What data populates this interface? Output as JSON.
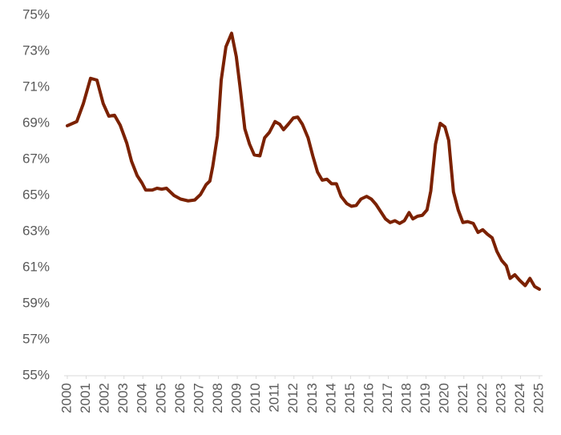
{
  "chart_data": {
    "type": "line",
    "x": [
      2000,
      2000.5,
      2000.85,
      2001.23,
      2001.57,
      2001.9,
      2002.2,
      2002.5,
      2002.8,
      2003.15,
      2003.4,
      2003.7,
      2003.95,
      2004.15,
      2004.5,
      2004.75,
      2005.0,
      2005.25,
      2005.65,
      2006.0,
      2006.4,
      2006.75,
      2007.05,
      2007.35,
      2007.55,
      2007.7,
      2007.95,
      2008.15,
      2008.4,
      2008.7,
      2008.95,
      2009.15,
      2009.4,
      2009.65,
      2009.9,
      2010.2,
      2010.45,
      2010.7,
      2011.0,
      2011.25,
      2011.45,
      2011.7,
      2011.97,
      2012.2,
      2012.45,
      2012.75,
      2013.0,
      2013.25,
      2013.5,
      2013.75,
      2014.0,
      2014.25,
      2014.5,
      2014.8,
      2015.05,
      2015.3,
      2015.55,
      2015.85,
      2016.1,
      2016.35,
      2016.6,
      2016.85,
      2017.1,
      2017.35,
      2017.6,
      2017.85,
      2018.1,
      2018.3,
      2018.55,
      2018.8,
      2019.05,
      2019.25,
      2019.5,
      2019.75,
      2020.0,
      2020.2,
      2020.45,
      2020.7,
      2020.95,
      2021.2,
      2021.5,
      2021.75,
      2022.0,
      2022.25,
      2022.5,
      2022.75,
      2023.0,
      2023.25,
      2023.45,
      2023.7,
      2023.95,
      2024.25,
      2024.5,
      2024.75,
      2025.0
    ],
    "series": [
      {
        "color": "#7b2100",
        "values": [
          68.87,
          69.1,
          70.1,
          71.5,
          71.4,
          70.1,
          69.4,
          69.45,
          68.9,
          67.9,
          66.9,
          66.1,
          65.7,
          65.3,
          65.3,
          65.4,
          65.35,
          65.4,
          65.0,
          64.8,
          64.7,
          64.75,
          65.05,
          65.6,
          65.8,
          66.6,
          68.3,
          71.4,
          73.25,
          74.0,
          72.7,
          71.0,
          68.7,
          67.85,
          67.25,
          67.2,
          68.2,
          68.5,
          69.1,
          68.95,
          68.65,
          68.95,
          69.3,
          69.35,
          68.95,
          68.2,
          67.2,
          66.3,
          65.85,
          65.9,
          65.65,
          65.65,
          64.95,
          64.55,
          64.4,
          64.45,
          64.8,
          64.95,
          64.8,
          64.5,
          64.1,
          63.7,
          63.5,
          63.6,
          63.45,
          63.6,
          64.05,
          63.7,
          63.85,
          63.9,
          64.2,
          65.25,
          67.85,
          69.0,
          68.8,
          68.05,
          65.2,
          64.2,
          63.5,
          63.55,
          63.45,
          62.95,
          63.1,
          62.85,
          62.65,
          61.9,
          61.4,
          61.1,
          60.4,
          60.6,
          60.3,
          60.0,
          60.4,
          59.95,
          59.8
        ]
      }
    ],
    "xlim": [
      2000,
      2025
    ],
    "xticks": [
      2000,
      2001,
      2002,
      2003,
      2004,
      2005,
      2006,
      2007,
      2008,
      2009,
      2010,
      2011,
      2012,
      2013,
      2014,
      2015,
      2016,
      2017,
      2018,
      2019,
      2020,
      2021,
      2022,
      2023,
      2024,
      2025
    ],
    "ylim": [
      55,
      75
    ],
    "yticks": [
      {
        "value": 55,
        "label": "55%"
      },
      {
        "value": 57,
        "label": "57%"
      },
      {
        "value": 59,
        "label": "59%"
      },
      {
        "value": 61,
        "label": "61%"
      },
      {
        "value": 63,
        "label": "63%"
      },
      {
        "value": 65,
        "label": "65%"
      },
      {
        "value": 67,
        "label": "67%"
      },
      {
        "value": 69,
        "label": "69%"
      },
      {
        "value": 71,
        "label": "71%"
      },
      {
        "value": 73,
        "label": "73%"
      },
      {
        "value": 75,
        "label": "75%"
      }
    ],
    "grid": false
  }
}
